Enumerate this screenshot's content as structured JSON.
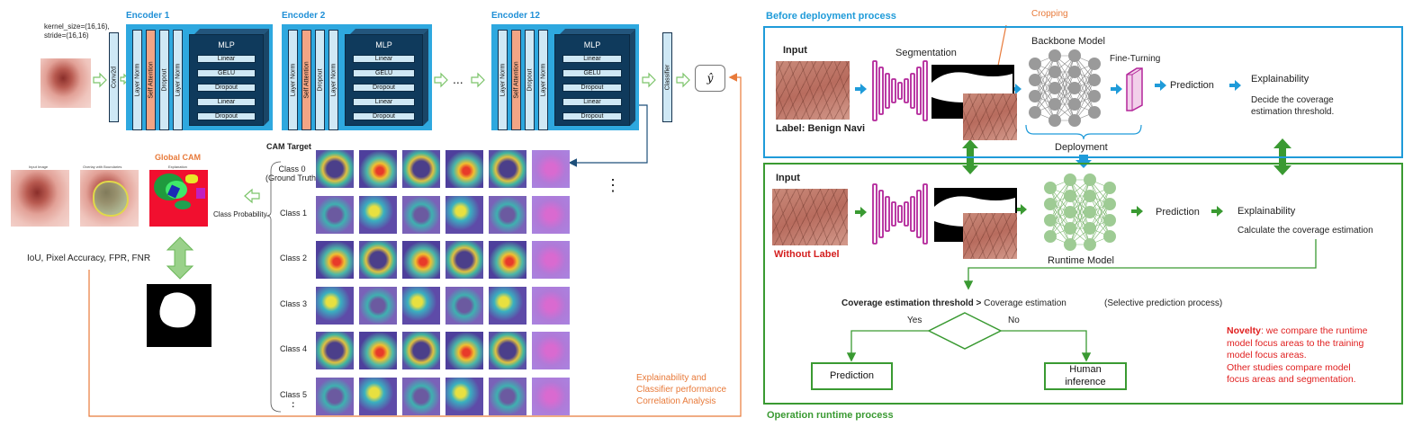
{
  "encoder": {
    "params": "kernel_size=(16,16),\nstride=(16,16)",
    "conv": "Conv2d",
    "titles": [
      "Encoder 1",
      "Encoder 2",
      "Encoder 12"
    ],
    "layer_norm": "Layer Norm",
    "self_attention": "Self Attention",
    "dropout": "Dropout",
    "mlp_title": "MLP",
    "mlp_rows": [
      "Linear",
      "GELU",
      "Dropout",
      "Linear",
      "Dropout"
    ],
    "ellipsis": "...",
    "classifier": "Classifier",
    "yhat": "ŷ"
  },
  "cam": {
    "target_title": "CAM Target",
    "classes": [
      "Class 0\n(Ground Truth)",
      "Class 1",
      "Class 2",
      "Class 3",
      "Class 4",
      "Class 5"
    ],
    "more": ":",
    "vdots": "⋮",
    "global_cam": "Global CAM",
    "panel_titles": [
      "Input Image",
      "Overlay with Boundaries",
      "Explanation"
    ],
    "class_probability": "Class Probability",
    "metrics": "IoU, Pixel Accuracy, FPR, FNR",
    "correlation": "Explainability and\nClassifier performance\nCorrelation Analysis"
  },
  "before": {
    "title": "Before deployment process",
    "input": "Input",
    "label": "Label: Benign Navi",
    "segmentation": "Segmentation",
    "cropping": "Cropping",
    "backbone": "Backbone Model",
    "finetuning": "Fine-Turning",
    "prediction": "Prediction",
    "explainability": "Explainability",
    "explain_desc": "Decide the coverage\nestimation threshold.",
    "deployment": "Deployment"
  },
  "runtime": {
    "title": "Operation runtime process",
    "input": "Input",
    "without_label": "Without Label",
    "runtime_model": "Runtime Model",
    "prediction": "Prediction",
    "explainability": "Explainability",
    "explain_desc": "Calculate the coverage estimation",
    "condition_bold": "Coverage estimation threshold >",
    "condition_rest": " Coverage estimation",
    "selective": "(Selective prediction process)",
    "yes": "Yes",
    "no": "No",
    "out_prediction": "Prediction",
    "out_human": "Human\ninference",
    "novelty_bold": "Novelty",
    "novelty_rest": ": we compare the runtime\nmodel focus areas to the training\nmodel focus areas.\nOther studies compare model\nfocus areas and segmentation."
  },
  "colors": {
    "encoder_blue": "#2ea8df",
    "mlp_navy": "#0f3a5c",
    "attention_orange": "#f2a585",
    "accent_orange": "#e87a3a",
    "before_blue": "#1f9bd9",
    "runtime_green": "#3a9a32",
    "model_purple": "#b3269a",
    "novelty_red": "#e02020"
  }
}
